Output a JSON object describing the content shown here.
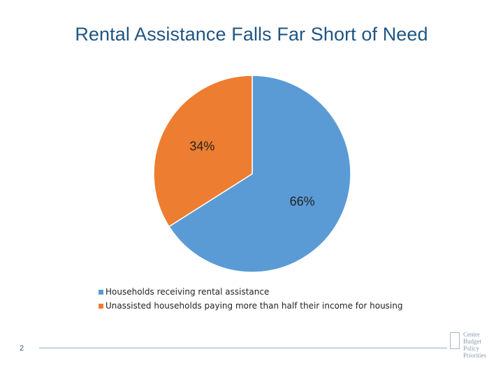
{
  "slide": {
    "title": "Rental Assistance Falls Far Short of Need",
    "page_number": "2"
  },
  "chart_data": {
    "type": "pie",
    "title": "",
    "slices": [
      {
        "label": "Households receiving rental assistance",
        "value": 66,
        "display": "66%",
        "color": "#5b9bd5"
      },
      {
        "label": "Unassisted households paying more than half their income for housing",
        "value": 34,
        "display": "34%",
        "color": "#ed7d31"
      }
    ],
    "legend_position": "bottom-center"
  },
  "logo": {
    "lines": [
      "Center",
      "Budget",
      "Policy",
      "Priorities"
    ]
  }
}
